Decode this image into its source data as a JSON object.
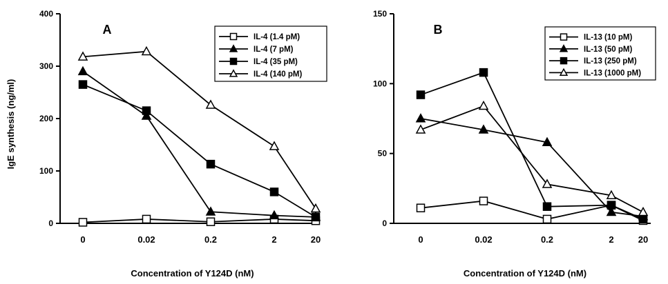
{
  "ylabel": "IgE synthesis (ng/ml)",
  "chart_data": [
    {
      "type": "line",
      "panel_label": "A",
      "xlabel": "Concentration of Y124D (nM)",
      "ylabel": "IgE synthesis (ng/ml)",
      "categories": [
        "0",
        "0.02",
        "0.2",
        "2",
        "20"
      ],
      "ylim": [
        0,
        400
      ],
      "yticks": [
        0,
        100,
        200,
        300,
        400
      ],
      "grid": false,
      "legend_position": "top-right",
      "series": [
        {
          "name": "IL-4 (1.4 pM)",
          "marker": "open-square",
          "values": [
            2,
            8,
            3,
            8,
            5
          ]
        },
        {
          "name": "IL-4 (7 pM)",
          "marker": "filled-triangle",
          "values": [
            290,
            205,
            22,
            15,
            12
          ]
        },
        {
          "name": "IL-4 (35 pM)",
          "marker": "filled-square",
          "values": [
            265,
            215,
            113,
            60,
            12
          ]
        },
        {
          "name": "IL-4 (140 pM)",
          "marker": "open-triangle",
          "values": [
            318,
            328,
            226,
            147,
            28
          ]
        }
      ]
    },
    {
      "type": "line",
      "panel_label": "B",
      "xlabel": "Concentration of Y124D (nM)",
      "ylabel": "",
      "categories": [
        "0",
        "0.02",
        "0.2",
        "2",
        "20"
      ],
      "ylim": [
        0,
        150
      ],
      "yticks": [
        0,
        50,
        100,
        150
      ],
      "grid": false,
      "legend_position": "top-right",
      "series": [
        {
          "name": "IL-13 (10 pM)",
          "marker": "open-square",
          "values": [
            11,
            16,
            3,
            13,
            2
          ]
        },
        {
          "name": "IL-13 (50 pM)",
          "marker": "filled-triangle",
          "values": [
            75,
            67,
            58,
            8,
            5
          ]
        },
        {
          "name": "IL-13 (250 pM)",
          "marker": "filled-square",
          "values": [
            92,
            108,
            12,
            13,
            3
          ]
        },
        {
          "name": "IL-13 (1000 pM)",
          "marker": "open-triangle",
          "values": [
            67,
            84,
            28,
            20,
            8
          ]
        }
      ]
    }
  ]
}
